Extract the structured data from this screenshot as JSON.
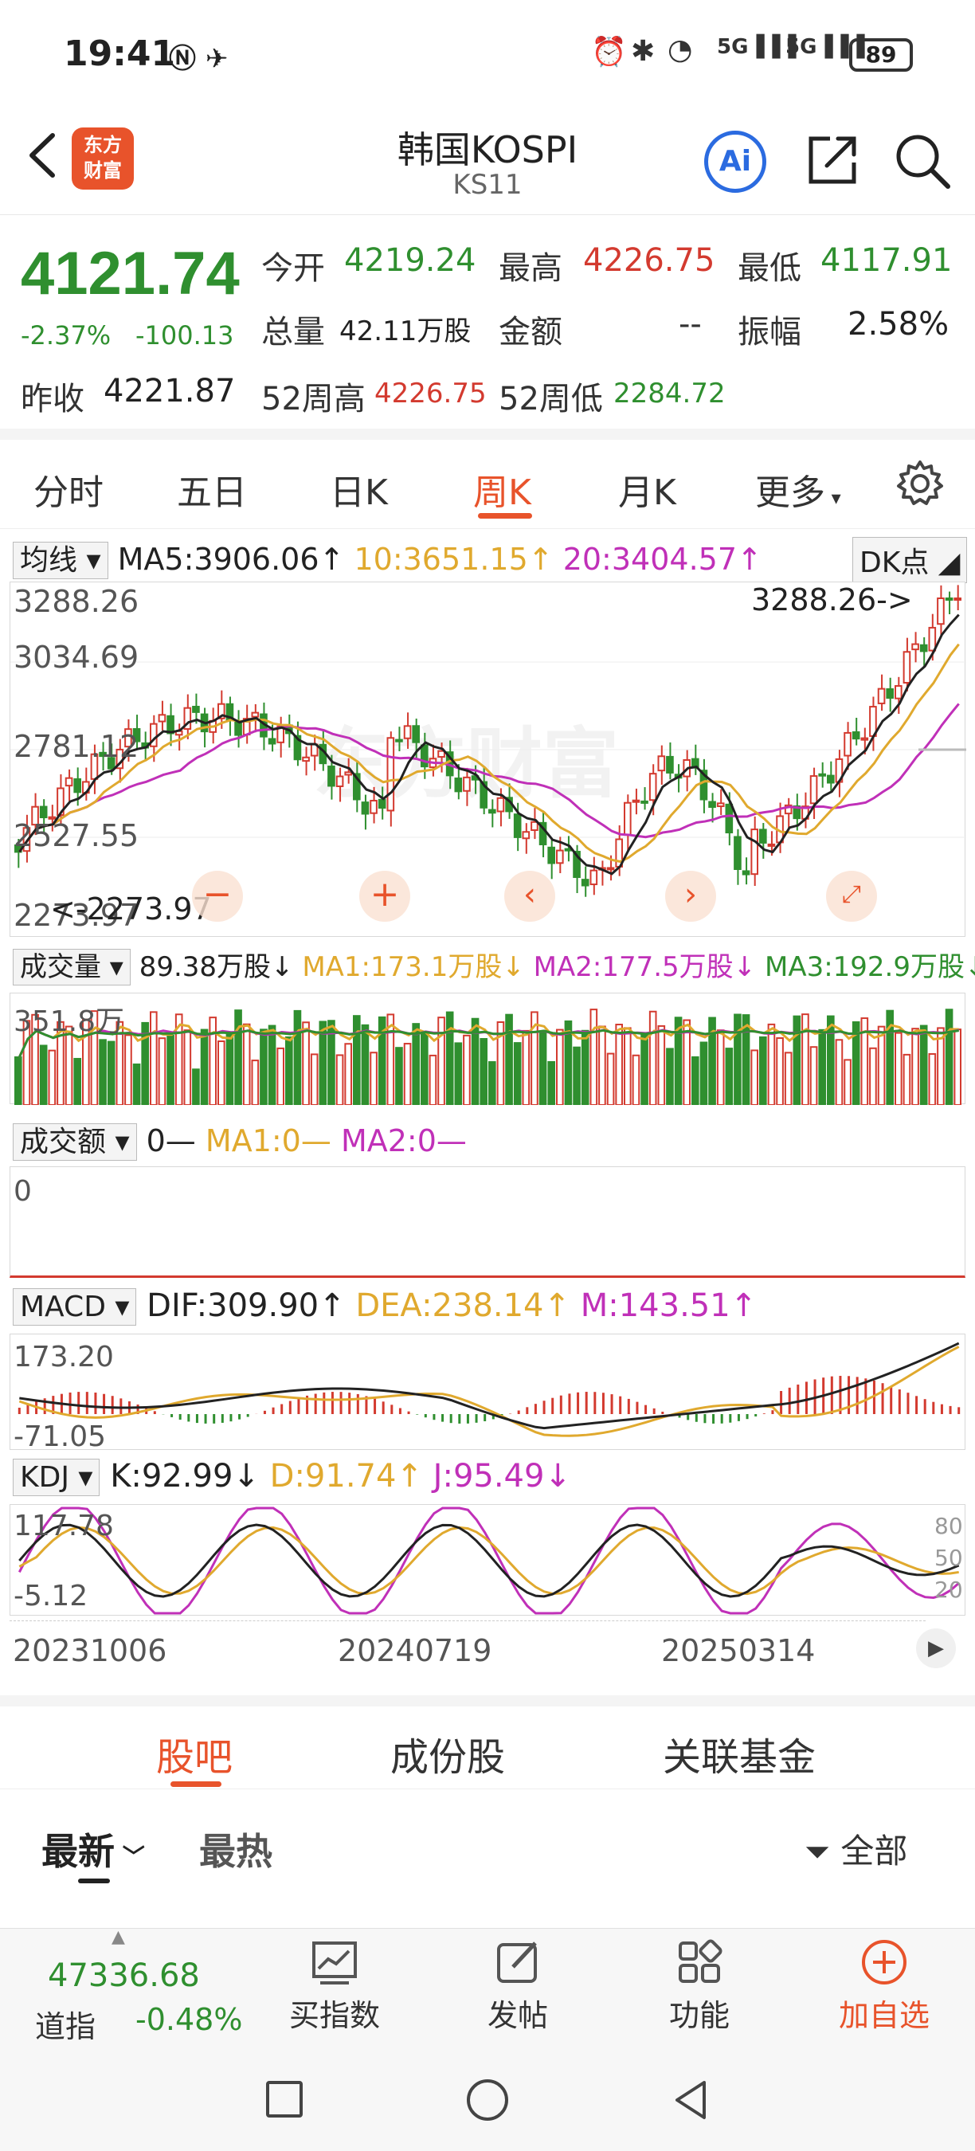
{
  "status": {
    "time": "19:41",
    "battery": "89",
    "network": "5G"
  },
  "header": {
    "title": "韩国KOSPI",
    "subtitle": "KS11",
    "logo_text": "东方财富",
    "ai_label": "Ai"
  },
  "quote": {
    "price": "4121.74",
    "change_pct": "-2.37%",
    "change_abs": "-100.13",
    "open_label": "今开",
    "open": "4219.24",
    "high_label": "最高",
    "high": "4226.75",
    "low_label": "最低",
    "low": "4117.91",
    "volume_label": "总量",
    "volume": "42.11万股",
    "amount_label": "金额",
    "amount": "--",
    "amplitude_label": "振幅",
    "amplitude": "2.58%",
    "prev_close_label": "昨收",
    "prev_close": "4221.87",
    "wk52_high_label": "52周高",
    "wk52_high": "4226.75",
    "wk52_low_label": "52周低",
    "wk52_low": "2284.72"
  },
  "tabs": [
    "分时",
    "五日",
    "日K",
    "周K",
    "月K",
    "更多"
  ],
  "active_tab": "周K",
  "main_chart": {
    "ma_selector": "均线",
    "ma5": "MA5:3906.06↑",
    "ma10": "10:3651.15↑",
    "ma20": "20:3404.57↑",
    "dk_label": "DK点",
    "y_ticks": [
      "3288.26",
      "3034.69",
      "2781.12",
      "2527.55",
      "2273.97"
    ],
    "max_annotation": "3288.26->",
    "min_annotation": "<-2273.97",
    "watermark": "东方财富"
  },
  "volume_panel": {
    "selector": "成交量",
    "value": "89.38万股↓",
    "ma1": "MA1:173.1万股↓",
    "ma2": "MA2:177.5万股↓",
    "ma3": "MA3:192.9万股↓",
    "y_max": "351.8万"
  },
  "amount_panel": {
    "selector": "成交额",
    "value": "0—",
    "ma1": "MA1:0—",
    "ma2": "MA2:0—",
    "y_val": "0"
  },
  "macd_panel": {
    "selector": "MACD",
    "dif": "DIF:309.90↑",
    "dea": "DEA:238.14↑",
    "m": "M:143.51↑",
    "y_max": "173.20",
    "y_min": "-71.05"
  },
  "kdj_panel": {
    "selector": "KDJ",
    "k": "K:92.99↓",
    "d": "D:91.74↑",
    "j": "J:95.49↓",
    "y_max": "117.78",
    "y_min": "-5.12",
    "levels": [
      "80",
      "50",
      "20"
    ]
  },
  "x_dates": [
    "20231006",
    "20240719",
    "20250314"
  ],
  "bottom_tabs": [
    "股吧",
    "成份股",
    "关联基金"
  ],
  "sort": {
    "latest": "最新",
    "hot": "最热",
    "filter": "全部"
  },
  "footer": {
    "ticker_value": "47336.68",
    "ticker_name": "道指",
    "ticker_change": "-0.48%",
    "buy_index": "买指数",
    "post": "发帖",
    "function": "功能",
    "add_watch": "加自选"
  },
  "colors": {
    "up": "#d33a2f",
    "down": "#2f8f2f",
    "accent": "#e8532b",
    "ma10": "#e0a92e",
    "ma20": "#c030b8"
  }
}
